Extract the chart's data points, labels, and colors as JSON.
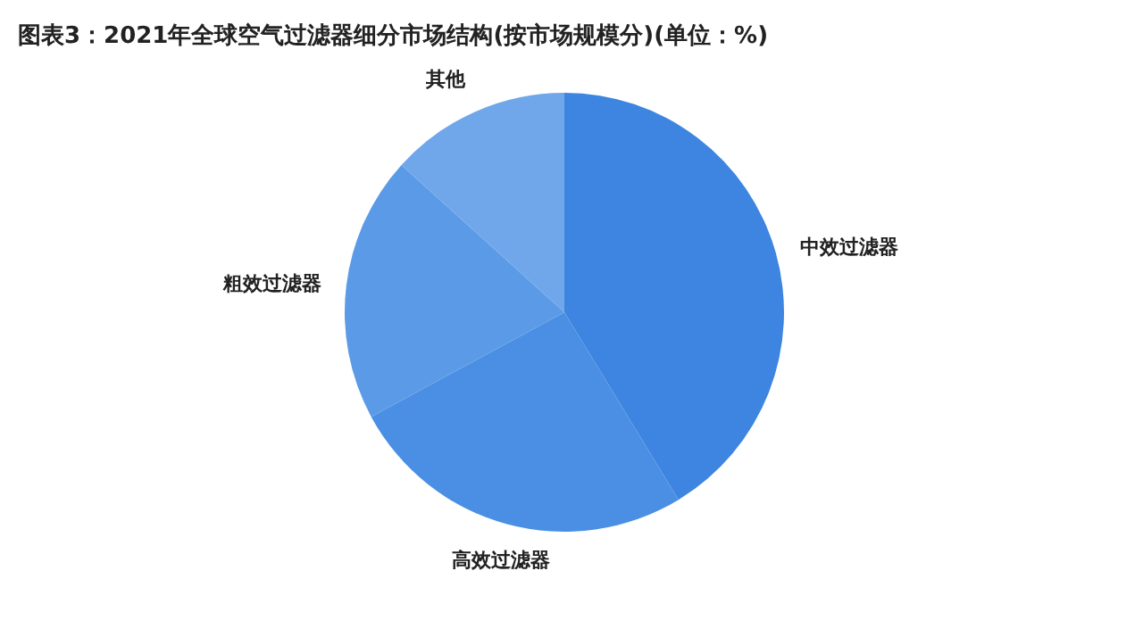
{
  "chart_data": {
    "type": "pie",
    "title": "图表3：2021年全球空气过滤器细分市场结构(按市场规模分)(单位：%)",
    "categories": [
      "中效过滤器",
      "高效过滤器",
      "粗效过滤器",
      "其他"
    ],
    "values": [
      41.3,
      25.8,
      19.6,
      13.3
    ],
    "colors": [
      "#3d85e0",
      "#4a8fe3",
      "#5b9ae6",
      "#70a7ea"
    ],
    "legend": false
  }
}
